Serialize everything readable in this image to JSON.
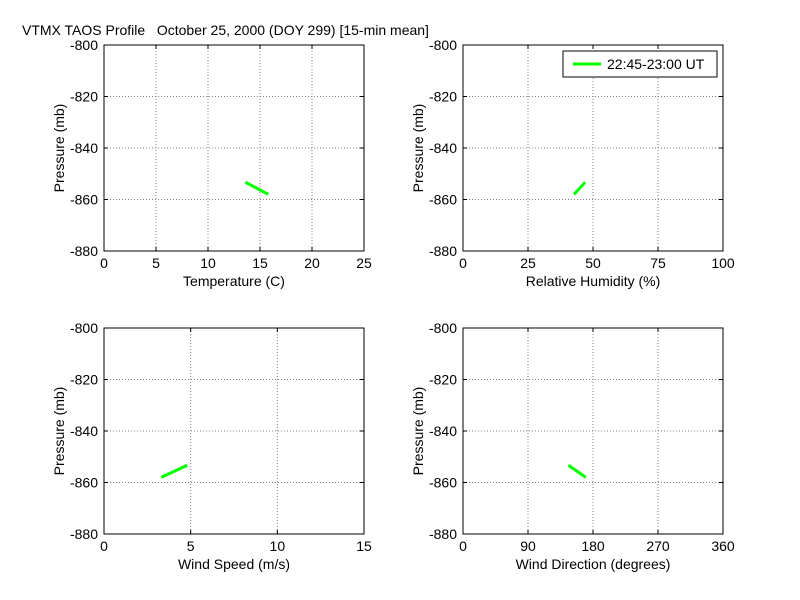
{
  "figure": {
    "title": "VTMX TAOS Profile   October 25, 2000 (DOY 299) [15-min mean]"
  },
  "colors": {
    "series": "#00ff00",
    "grid": "#808080",
    "axes": "#000000",
    "background": "#ffffff"
  },
  "legend": {
    "label": "22:45-23:00 UT",
    "placement": "top-right",
    "panel_index": 1
  },
  "chart_data": [
    {
      "type": "line",
      "xlabel": "Temperature (C)",
      "ylabel": "Pressure (mb)",
      "xlim": [
        0,
        25
      ],
      "ylim": [
        -880,
        -800
      ],
      "xticks": [
        0,
        5,
        10,
        15,
        20,
        25
      ],
      "yticks": [
        -800,
        -820,
        -840,
        -860,
        -880
      ],
      "grid": true,
      "series": [
        {
          "x": [
            13.6,
            15.8
          ],
          "y": [
            -853.3,
            -858.0
          ]
        }
      ]
    },
    {
      "type": "line",
      "xlabel": "Relative Humidity (%)",
      "ylabel": "Pressure (mb)",
      "xlim": [
        0,
        100
      ],
      "ylim": [
        -880,
        -800
      ],
      "xticks": [
        0,
        25,
        50,
        75,
        100
      ],
      "yticks": [
        -800,
        -820,
        -840,
        -860,
        -880
      ],
      "grid": true,
      "series": [
        {
          "name": "22:45-23:00 UT",
          "x": [
            47.0,
            42.7
          ],
          "y": [
            -853.3,
            -858.0
          ]
        }
      ]
    },
    {
      "type": "line",
      "xlabel": "Wind Speed (m/s)",
      "ylabel": "Pressure (mb)",
      "xlim": [
        0,
        15
      ],
      "ylim": [
        -880,
        -800
      ],
      "xticks": [
        0,
        5,
        10,
        15
      ],
      "yticks": [
        -800,
        -820,
        -840,
        -860,
        -880
      ],
      "grid": true,
      "series": [
        {
          "x": [
            4.8,
            3.3
          ],
          "y": [
            -853.3,
            -858.0
          ]
        }
      ]
    },
    {
      "type": "line",
      "xlabel": "Wind Direction (degrees)",
      "ylabel": "Pressure (mb)",
      "xlim": [
        0,
        360
      ],
      "ylim": [
        -880,
        -800
      ],
      "xticks": [
        0,
        90,
        180,
        270,
        360
      ],
      "yticks": [
        -800,
        -820,
        -840,
        -860,
        -880
      ],
      "grid": true,
      "series": [
        {
          "x": [
            146,
            170
          ],
          "y": [
            -853.3,
            -858.0
          ]
        }
      ]
    }
  ]
}
